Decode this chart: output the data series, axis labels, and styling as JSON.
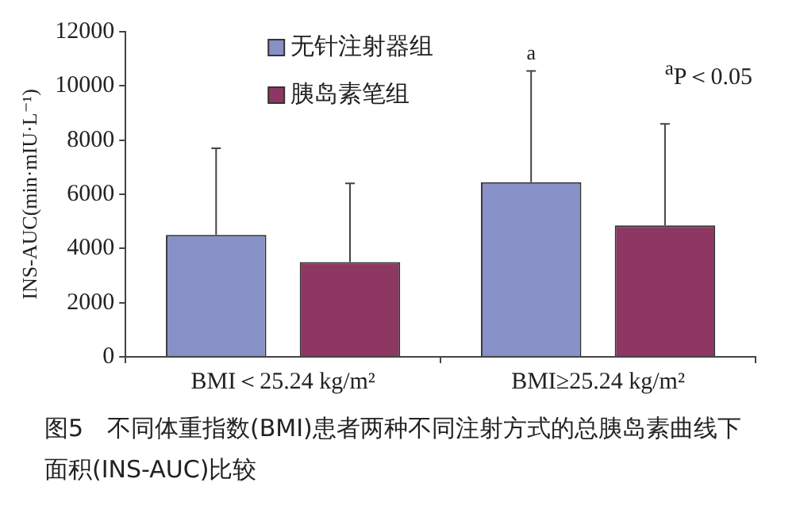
{
  "chart_data": {
    "type": "bar",
    "ylabel": "INS-AUC(min·mIU·L⁻¹)",
    "categories": [
      "BMI＜25.24 kg/m²",
      "BMI≥25.24 kg/m²"
    ],
    "series": [
      {
        "name": "无针注射器组",
        "color": "#8890c8",
        "values": [
          4500,
          6450
        ],
        "errors": [
          [
            4500,
            7700
          ],
          [
            6450,
            10550
          ]
        ]
      },
      {
        "name": "胰岛素笔组",
        "color": "#8e3763",
        "values": [
          3500,
          4850
        ],
        "errors": [
          [
            3500,
            6400
          ],
          [
            4850,
            8600
          ]
        ]
      }
    ],
    "ylim": [
      0,
      12000
    ],
    "yticks": [
      0,
      2000,
      4000,
      6000,
      8000,
      10000,
      12000
    ],
    "grid": false,
    "legend": "top left",
    "annotations": [
      "a",
      "$^{a}$P＜0.05",
      "图5　不同体重指数(BMI)患者两种不同注射方式的总胰岛素曲线下面积(INS-AUC)比较"
    ]
  }
}
